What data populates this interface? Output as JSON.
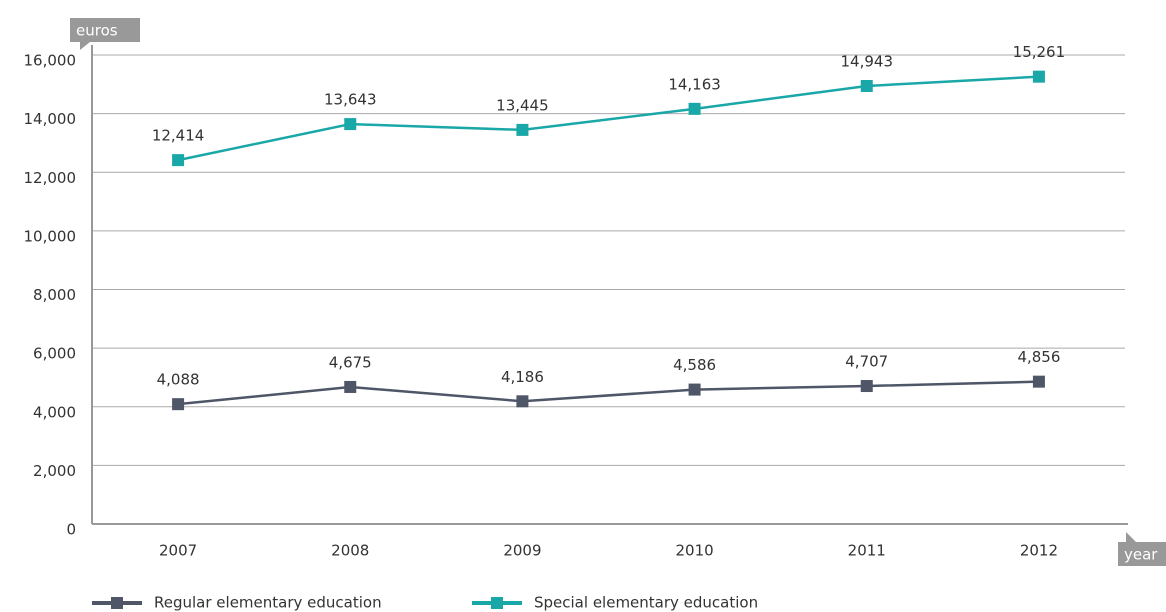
{
  "chart_data": {
    "type": "line",
    "y_axis_label": "euros",
    "x_axis_label": "year",
    "categories": [
      "2007",
      "2008",
      "2009",
      "2010",
      "2011",
      "2012"
    ],
    "series": [
      {
        "name": "Regular elementary education",
        "color": "#4e5668",
        "values": [
          4088,
          4675,
          4186,
          4586,
          4707,
          4856
        ],
        "value_labels": [
          "4,088",
          "4,675",
          "4,186",
          "4,586",
          "4,707",
          "4,856"
        ]
      },
      {
        "name": "Special elementary education",
        "color": "#1aa7a8",
        "values": [
          12414,
          13643,
          13445,
          14163,
          14943,
          15261
        ],
        "value_labels": [
          "12,414",
          "13,643",
          "13,445",
          "14,163",
          "14,943",
          "15,261"
        ]
      }
    ],
    "ylim": [
      0,
      16000
    ],
    "yticks": [
      0,
      {
        "value": 2000,
        "label": "2,000"
      },
      {
        "value": 4000,
        "label": "4,000"
      },
      {
        "value": 6000,
        "label": "6,000"
      },
      {
        "value": 8000,
        "label": "8,000"
      },
      {
        "value": 10000,
        "label": "10,000"
      },
      {
        "value": 12000,
        "label": "12,000"
      },
      {
        "value": 14000,
        "label": "14,000"
      },
      {
        "value": 16000,
        "label": "16,000"
      }
    ],
    "grid": true,
    "legend": "bottom"
  }
}
